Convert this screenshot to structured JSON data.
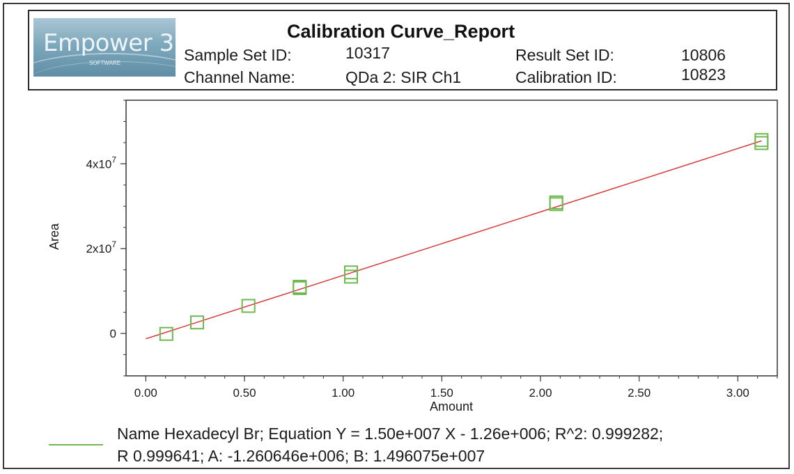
{
  "header": {
    "logo_text": "Empower 3",
    "logo_tagline": "SOFTWARE",
    "title": "Calibration Curve_Report",
    "fields": [
      {
        "label": "Sample Set ID:",
        "value": "10317"
      },
      {
        "label": "Result Set ID:",
        "value": "10806"
      },
      {
        "label": "Channel Name:",
        "value": "QDa 2: SIR Ch1"
      },
      {
        "label": "Calibration ID:",
        "value": "10823"
      }
    ]
  },
  "chart_data": {
    "type": "scatter",
    "title": "",
    "xlabel": "Amount",
    "ylabel": "Area",
    "xlim": [
      -0.1,
      3.2
    ],
    "ylim": [
      -10000000,
      55000000
    ],
    "x_ticks": [
      0.0,
      0.5,
      1.0,
      1.5,
      2.0,
      2.5,
      3.0
    ],
    "x_tick_labels": [
      "0.00",
      "0.50",
      "1.00",
      "1.50",
      "2.00",
      "2.50",
      "3.00"
    ],
    "y_ticks": [
      0,
      20000000,
      40000000
    ],
    "y_tick_labels": [
      "0",
      "2x10^7",
      "4x10^7"
    ],
    "grid": false,
    "series": [
      {
        "points": [
          {
            "x": 0.104,
            "y": -100000
          },
          {
            "x": 0.26,
            "y": 2600000
          },
          {
            "x": 0.52,
            "y": 6500000
          },
          {
            "x": 0.78,
            "y": 10700000
          },
          {
            "x": 0.78,
            "y": 11000000
          },
          {
            "x": 1.04,
            "y": 13400000
          },
          {
            "x": 1.04,
            "y": 14400000
          },
          {
            "x": 2.08,
            "y": 30500000
          },
          {
            "x": 2.08,
            "y": 30900000
          },
          {
            "x": 3.12,
            "y": 44900000
          },
          {
            "x": 3.12,
            "y": 45600000
          }
        ],
        "marker_color": "#6db84f"
      }
    ],
    "fit": {
      "slope": 14960750,
      "intercept": -1260646,
      "x_range": [
        0.0,
        3.12
      ],
      "color": "#d63a3a"
    }
  },
  "footer": {
    "legend_color": "#6db84f",
    "line1": "Name Hexadecyl Br; Equation Y = 1.50e+007 X - 1.26e+006;   R^2: 0.999282;",
    "line2": "R 0.999641;   A: -1.260646e+006;   B: 1.496075e+007"
  }
}
